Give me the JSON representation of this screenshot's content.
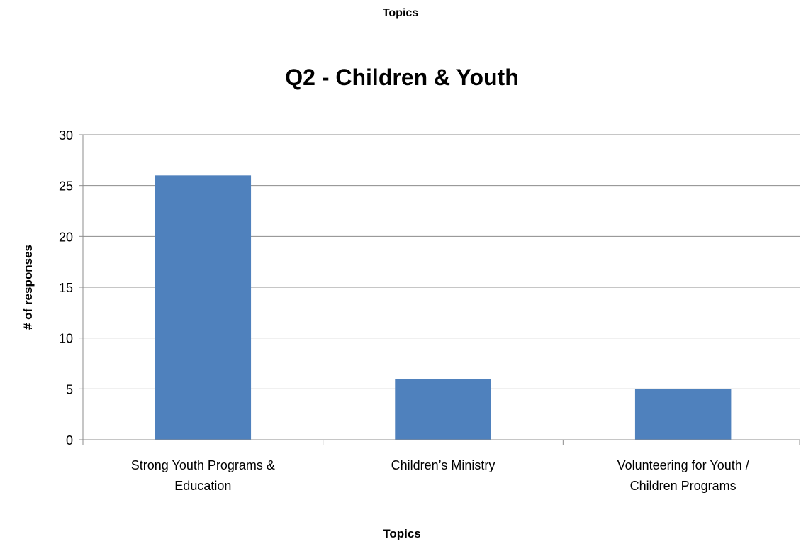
{
  "header": {
    "label": "Topics"
  },
  "chart_data": {
    "type": "bar",
    "title": "Q2 - Children & Youth",
    "xlabel": "Topics",
    "ylabel": "# of responses",
    "categories": [
      [
        "Strong Youth Programs &",
        "Education"
      ],
      [
        "Children’s Ministry"
      ],
      [
        "Volunteering for Youth /",
        "Children Programs"
      ]
    ],
    "values": [
      26,
      6,
      5
    ],
    "ylim": [
      0,
      30
    ],
    "yticks": [
      0,
      5,
      10,
      15,
      20,
      25,
      30
    ],
    "grid": true,
    "legend": "none",
    "bar_color": "#4f81bd",
    "grid_color": "#8c8c8c"
  }
}
